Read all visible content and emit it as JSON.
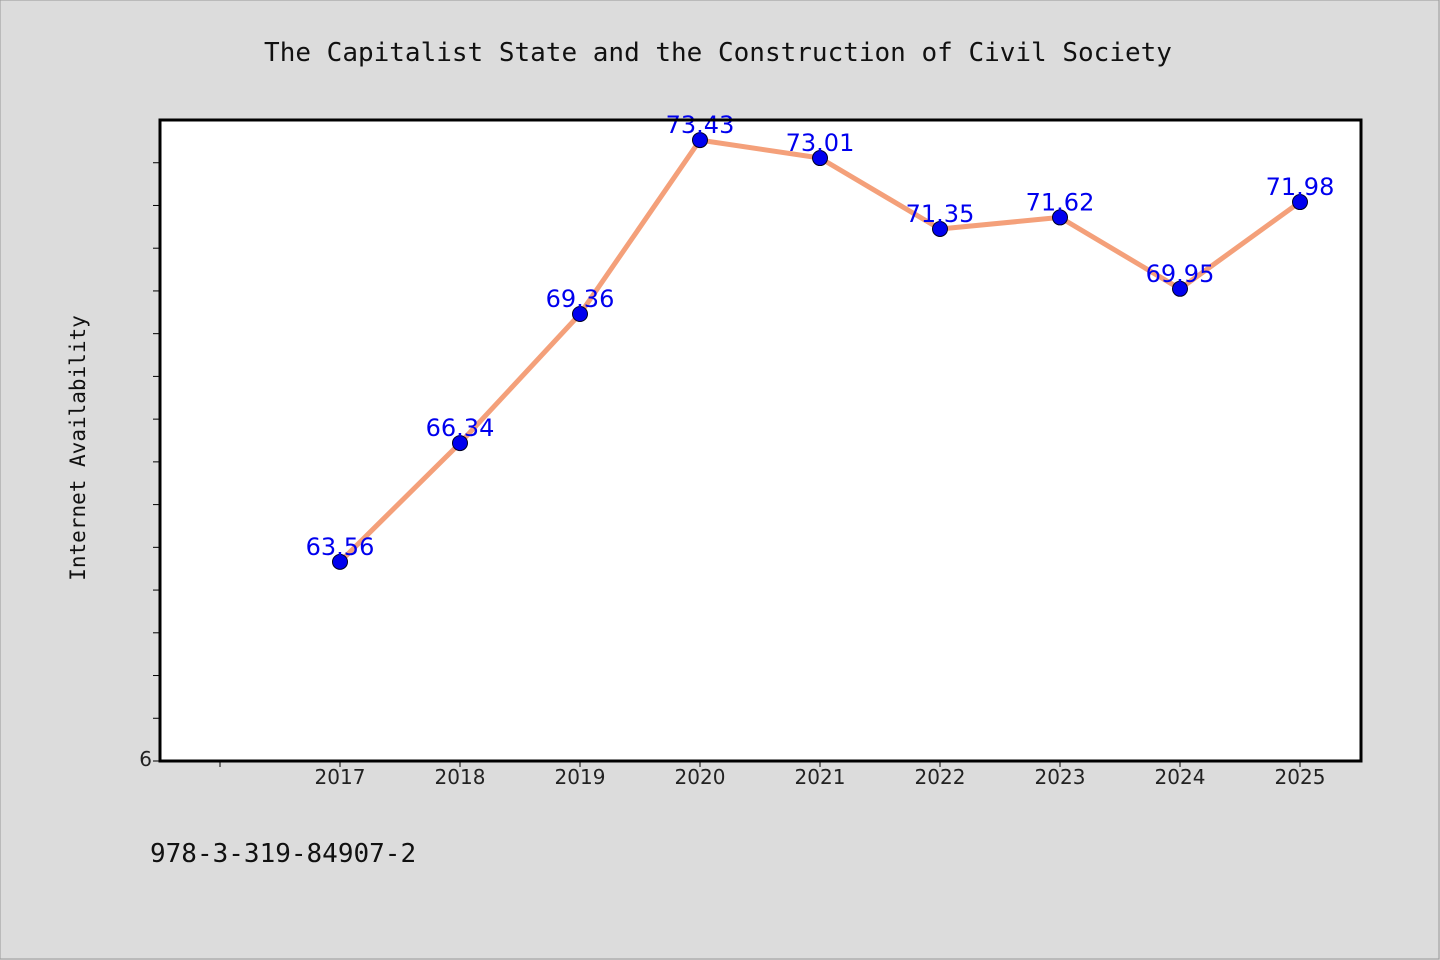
{
  "chart_data": {
    "type": "line",
    "title": "The Capitalist State and the Construction of Civil Society",
    "ylabel": "Internet Availability",
    "xlabel": "",
    "categories": [
      "2017",
      "2018",
      "2019",
      "2020",
      "2021",
      "2022",
      "2023",
      "2024",
      "2025"
    ],
    "values": [
      63.56,
      66.34,
      69.36,
      73.43,
      73.01,
      71.35,
      71.62,
      69.95,
      71.98
    ],
    "data_labels": [
      "63.56",
      "66.34",
      "69.36",
      "73.43",
      "73.01",
      "71.35",
      "71.62",
      "69.95",
      "71.98"
    ],
    "ylim": [
      58.9,
      73.9
    ],
    "y_tick_labels": [
      "6"
    ],
    "line_color": "#f4a07a",
    "marker_color": "#0000ee",
    "label_color": "#0000ee",
    "grid": false,
    "legend": false
  },
  "footnote": "978-3-319-84907-2"
}
